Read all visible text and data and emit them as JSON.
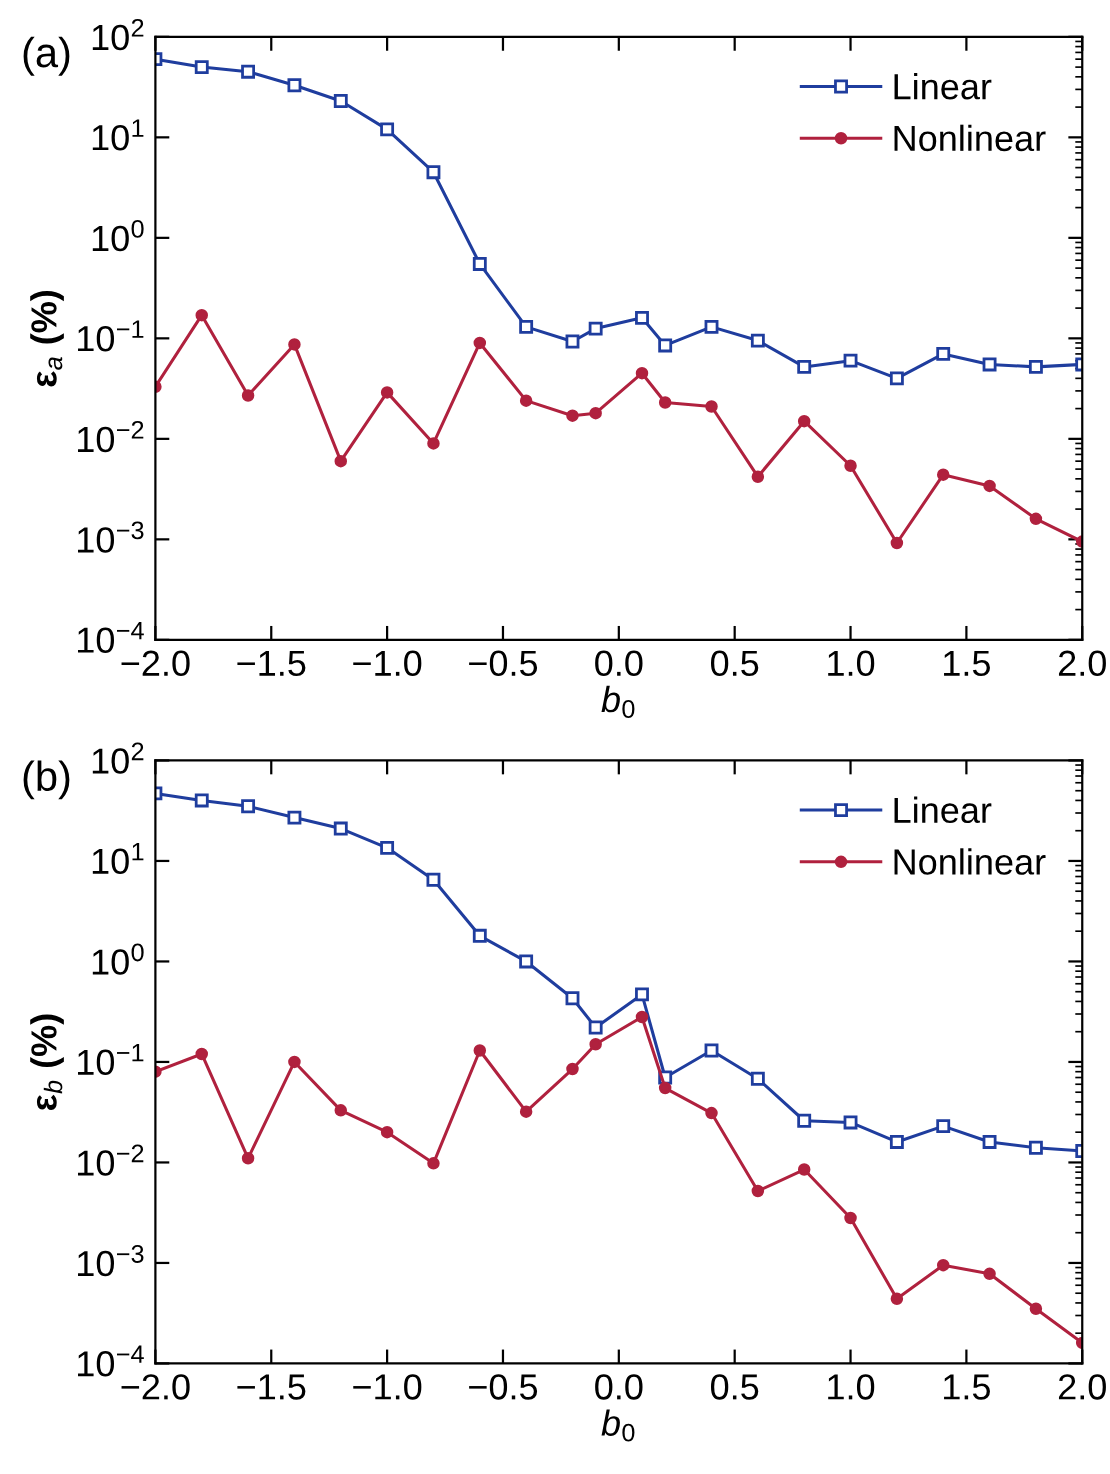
{
  "chart_data": [
    {
      "type": "line",
      "title": "(a)",
      "xlabel": "b$_{0}$",
      "ylabel": "ε$_{a}$ (%)",
      "log": "y",
      "legend": "top right",
      "grid": false,
      "x": [
        -2.0,
        -1.8,
        -1.6,
        -1.4,
        -1.2,
        -1.0,
        -0.8,
        -0.6,
        -0.4,
        -0.2,
        -0.1,
        0.1,
        0.2,
        0.4,
        0.6,
        0.8,
        1.0,
        1.2,
        1.4,
        1.6,
        1.8,
        2.0
      ],
      "xlim": [
        -2.0,
        2.0
      ],
      "xticks": [
        {
          "value": -2.0,
          "label": "−2.0"
        },
        {
          "value": -1.5,
          "label": "−1.5"
        },
        {
          "value": -1.0,
          "label": "−1.0"
        },
        {
          "value": -0.5,
          "label": "−0.5"
        },
        {
          "value": 0.0,
          "label": "0.0"
        },
        {
          "value": 0.5,
          "label": "0.5"
        },
        {
          "value": 1.0,
          "label": "1.0"
        },
        {
          "value": 1.5,
          "label": "1.5"
        },
        {
          "value": 2.0,
          "label": "2.0"
        }
      ],
      "ylim": [
        0.0001,
        100
      ],
      "yticks": [
        {
          "value": 0.0001,
          "label": "10$^{−4}$"
        },
        {
          "value": 0.001,
          "label": "10$^{−3}$"
        },
        {
          "value": 0.01,
          "label": "10$^{−2}$"
        },
        {
          "value": 0.1,
          "label": "10$^{−1}$"
        },
        {
          "value": 1,
          "label": "10$^{0}$"
        },
        {
          "value": 10,
          "label": "10$^{1}$"
        },
        {
          "value": 100,
          "label": "10$^{2}$"
        }
      ],
      "series": [
        {
          "name": "Linear",
          "color": "#1f3d9e",
          "marker": "square",
          "values": [
            60,
            50,
            45,
            33,
            23,
            12,
            4.5,
            0.55,
            0.13,
            0.093,
            0.125,
            0.16,
            0.085,
            0.13,
            0.095,
            0.052,
            0.06,
            0.04,
            0.07,
            0.055,
            0.052,
            0.055
          ]
        },
        {
          "name": "Nonlinear",
          "color": "#b0213e",
          "marker": "circle",
          "values": [
            0.033,
            0.17,
            0.027,
            0.087,
            0.006,
            0.029,
            0.009,
            0.09,
            0.024,
            0.017,
            0.018,
            0.045,
            0.023,
            0.021,
            0.0042,
            0.015,
            0.0054,
            0.00092,
            0.0044,
            0.0034,
            0.0016,
            0.00095
          ]
        }
      ]
    },
    {
      "type": "line",
      "title": "(b)",
      "xlabel": "b$_{0}$",
      "ylabel": "ε$_{b}$ (%)",
      "log": "y",
      "legend": "top right",
      "grid": false,
      "x": [
        -2.0,
        -1.8,
        -1.6,
        -1.4,
        -1.2,
        -1.0,
        -0.8,
        -0.6,
        -0.4,
        -0.2,
        -0.1,
        0.1,
        0.2,
        0.4,
        0.6,
        0.8,
        1.0,
        1.2,
        1.4,
        1.6,
        1.8,
        2.0
      ],
      "xlim": [
        -2.0,
        2.0
      ],
      "xticks": [
        {
          "value": -2.0,
          "label": "−2.0"
        },
        {
          "value": -1.5,
          "label": "−1.5"
        },
        {
          "value": -1.0,
          "label": "−1.0"
        },
        {
          "value": -0.5,
          "label": "−0.5"
        },
        {
          "value": 0.0,
          "label": "0.0"
        },
        {
          "value": 0.5,
          "label": "0.5"
        },
        {
          "value": 1.0,
          "label": "1.0"
        },
        {
          "value": 1.5,
          "label": "1.5"
        },
        {
          "value": 2.0,
          "label": "2.0"
        }
      ],
      "ylim": [
        0.0001,
        100
      ],
      "yticks": [
        {
          "value": 0.0001,
          "label": "10$^{−4}$"
        },
        {
          "value": 0.001,
          "label": "10$^{−3}$"
        },
        {
          "value": 0.01,
          "label": "10$^{−2}$"
        },
        {
          "value": 0.1,
          "label": "10$^{−1}$"
        },
        {
          "value": 1,
          "label": "10$^{0}$"
        },
        {
          "value": 10,
          "label": "10$^{1}$"
        },
        {
          "value": 100,
          "label": "10$^{2}$"
        }
      ],
      "series": [
        {
          "name": "Linear",
          "color": "#1f3d9e",
          "marker": "square",
          "values": [
            47,
            40,
            35,
            27,
            21,
            13.5,
            6.5,
            1.8,
            1.0,
            0.43,
            0.22,
            0.47,
            0.07,
            0.13,
            0.068,
            0.026,
            0.025,
            0.016,
            0.023,
            0.016,
            0.014,
            0.013
          ]
        },
        {
          "name": "Nonlinear",
          "color": "#b0213e",
          "marker": "circle",
          "values": [
            0.08,
            0.12,
            0.011,
            0.1,
            0.033,
            0.02,
            0.0098,
            0.13,
            0.032,
            0.085,
            0.15,
            0.28,
            0.055,
            0.031,
            0.0052,
            0.0085,
            0.0028,
            0.00044,
            0.00095,
            0.00078,
            0.00035,
            0.00016
          ]
        }
      ]
    }
  ]
}
